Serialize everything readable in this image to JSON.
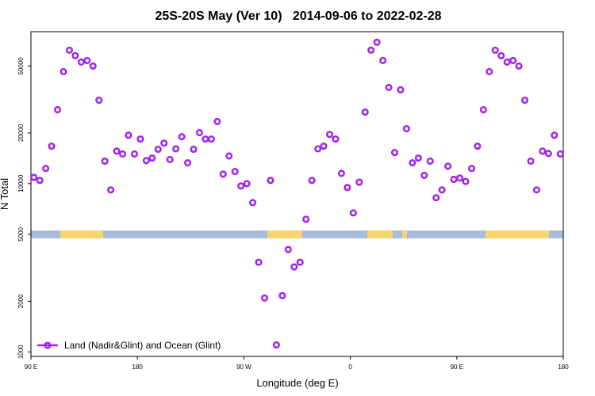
{
  "chart_data": {
    "type": "scatter",
    "title": "25S-20S May (Ver 10)   2014-09-06 to 2022-02-28",
    "xlabel": "Longitude (deg E)",
    "ylabel": "N Total",
    "xlim": [
      90,
      540
    ],
    "ylim": [
      940,
      80000
    ],
    "yscale": "log",
    "grid": false,
    "legend_loc": "lower left",
    "xticks": [
      {
        "value": 90,
        "label": "90 E"
      },
      {
        "value": 180,
        "label": "180"
      },
      {
        "value": 270,
        "label": "90 W"
      },
      {
        "value": 360,
        "label": "0"
      },
      {
        "value": 450,
        "label": "90 E"
      },
      {
        "value": 540,
        "label": "180"
      }
    ],
    "yticks": [
      1000,
      2000,
      5000,
      10000,
      20000,
      50000
    ],
    "series": [
      {
        "name": "Land (Nadir&Glint) and Ocean (Glint)",
        "color": "#a020f0",
        "x": [
          92.5,
          97.5,
          102.5,
          107.5,
          112.5,
          117.5,
          122.5,
          127.5,
          132.5,
          137.5,
          142.5,
          147.5,
          152.5,
          157.5,
          162.5,
          167.5,
          172.5,
          177.5,
          182.5,
          187.5,
          192.5,
          197.5,
          202.5,
          207.5,
          212.5,
          217.5,
          222.5,
          227.5,
          232.5,
          237.5,
          242.5,
          247.5,
          252.5,
          257.5,
          262.5,
          267.5,
          272.5,
          277.5,
          282.5,
          287.5,
          292.5,
          297.5,
          302.5,
          307.5,
          312.5,
          317.5,
          322.5,
          327.5,
          332.5,
          337.5,
          342.5,
          347.5,
          352.5,
          357.5,
          362.5,
          367.5,
          372.5,
          377.5,
          382.5,
          387.5,
          392.5,
          397.5,
          402.5,
          407.5,
          412.5,
          417.5,
          422.5,
          427.5,
          432.5,
          437.5,
          442.5,
          447.5,
          452.5,
          457.5,
          462.5,
          467.5,
          472.5,
          477.5,
          482.5,
          487.5,
          492.5,
          497.5,
          502.5,
          507.5,
          512.5,
          517.5,
          522.5,
          527.5,
          532.5,
          537.5
        ],
        "values": [
          10900,
          10450,
          12300,
          16700,
          27500,
          46300,
          62100,
          57600,
          52800,
          53900,
          50000,
          31300,
          13600,
          9180,
          15600,
          15000,
          19400,
          15000,
          18400,
          13700,
          14200,
          16000,
          17400,
          13900,
          16100,
          19000,
          13300,
          16000,
          20100,
          18400,
          18400,
          23400,
          11400,
          14600,
          11800,
          9690,
          10000,
          7710,
          3410,
          2090,
          10450,
          1100,
          2160,
          4060,
          3200,
          3410,
          6140,
          10450,
          16100,
          16700,
          19600,
          18400,
          11500,
          9480,
          6700,
          10200,
          26600,
          62100,
          69200,
          53900,
          37300,
          15300,
          36100,
          21200,
          13300,
          14200,
          11200,
          13600,
          8240,
          9180,
          12700,
          10600,
          10800,
          10300,
          12300,
          16700,
          27500,
          46300,
          62100,
          57600,
          52800,
          53900,
          50000,
          31300,
          13600,
          9180,
          15600,
          15100,
          19400,
          15000
        ]
      }
    ]
  }
}
